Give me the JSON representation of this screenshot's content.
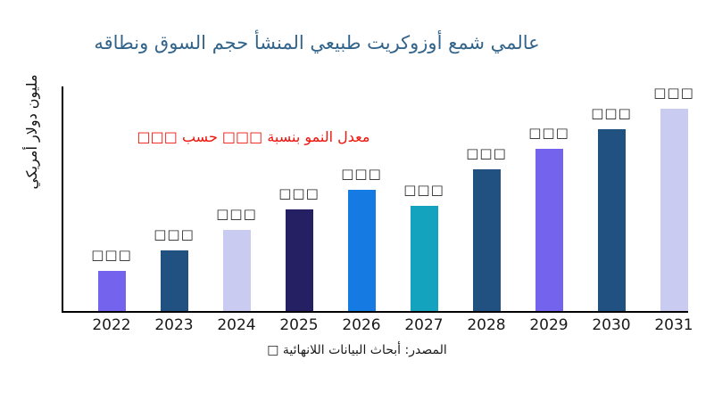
{
  "figure": {
    "background": "#FFFFFF"
  },
  "chart_data": {
    "type": "bar",
    "title": "عالمي شمع أوزوكريت طبيعي المنشأ حجم السوق ونطاقه",
    "title_color": "#33658C",
    "ylabel": "مليون دولار أمريكي",
    "xlabel": "",
    "categories": [
      "2022",
      "2023",
      "2024",
      "2025",
      "2026",
      "2027",
      "2028",
      "2029",
      "2030",
      "2031"
    ],
    "values": [
      20,
      30,
      40,
      50,
      60,
      52,
      70,
      80,
      90,
      100
    ],
    "values_note": "Numeric data labels are rendered as missing-glyph boxes (□□□) in the image; values are relative bar heights estimated with tallest bar = 100.",
    "value_labels": [
      "□□□",
      "□□□",
      "□□□",
      "□□□",
      "□□□",
      "□□□",
      "□□□",
      "□□□",
      "□□□",
      "□□□"
    ],
    "bar_colors": [
      "#7463EC",
      "#205180",
      "#C9CBF0",
      "#252063",
      "#157BE2",
      "#14A3BE",
      "#205180",
      "#7463EC",
      "#205180",
      "#C9CBF0"
    ],
    "annotation_text": "معدل النمو بنسبة □□□ حسب □□□",
    "annotation_color": "#EF130B",
    "source": "المصدر: أبحاث البيانات اللانهائية □",
    "ylim": [
      0,
      105
    ],
    "grid": false,
    "legend": false,
    "axis_color": "#000000",
    "tick_label_color": "#1A1A1A",
    "value_label_color": "#262626"
  }
}
